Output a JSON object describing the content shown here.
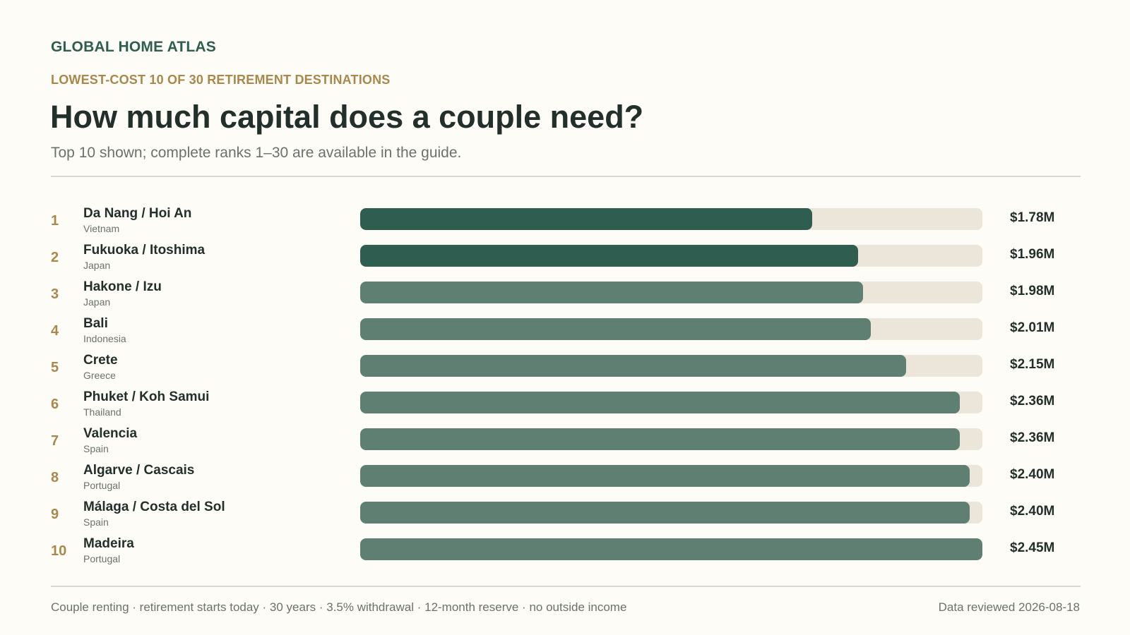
{
  "header": {
    "brand": "GLOBAL HOME ATLAS",
    "kicker": "LOWEST-COST 10 OF 30 RETIREMENT DESTINATIONS",
    "title": "How much capital does a couple need?",
    "subtitle": "Top 10 shown; complete ranks 1–30 are available in the guide."
  },
  "footer": {
    "assumptions": "Couple renting · retirement starts today · 30 years · 3.5% withdrawal · 12-month reserve · no outside income",
    "reviewed": "Data reviewed 2026-08-18"
  },
  "colors": {
    "highlight_bar": "#2f5e50",
    "standard_bar": "#5f7f72",
    "track": "#ebe5da",
    "accent": "#a8884c"
  },
  "chart_data": {
    "type": "bar",
    "orientation": "horizontal",
    "unit": "USD millions",
    "xlim": [
      0,
      2.45
    ],
    "grid": false,
    "legend": "none",
    "rows": [
      {
        "rank": "1",
        "name": "Da Nang / Hoi An",
        "country": "Vietnam",
        "value": 1.78,
        "label": "$1.78M",
        "highlight": true
      },
      {
        "rank": "2",
        "name": "Fukuoka / Itoshima",
        "country": "Japan",
        "value": 1.96,
        "label": "$1.96M",
        "highlight": true
      },
      {
        "rank": "3",
        "name": "Hakone / Izu",
        "country": "Japan",
        "value": 1.98,
        "label": "$1.98M",
        "highlight": false
      },
      {
        "rank": "4",
        "name": "Bali",
        "country": "Indonesia",
        "value": 2.01,
        "label": "$2.01M",
        "highlight": false
      },
      {
        "rank": "5",
        "name": "Crete",
        "country": "Greece",
        "value": 2.15,
        "label": "$2.15M",
        "highlight": false
      },
      {
        "rank": "6",
        "name": "Phuket / Koh Samui",
        "country": "Thailand",
        "value": 2.36,
        "label": "$2.36M",
        "highlight": false
      },
      {
        "rank": "7",
        "name": "Valencia",
        "country": "Spain",
        "value": 2.36,
        "label": "$2.36M",
        "highlight": false
      },
      {
        "rank": "8",
        "name": "Algarve / Cascais",
        "country": "Portugal",
        "value": 2.4,
        "label": "$2.40M",
        "highlight": false
      },
      {
        "rank": "9",
        "name": "Málaga / Costa del Sol",
        "country": "Spain",
        "value": 2.4,
        "label": "$2.40M",
        "highlight": false
      },
      {
        "rank": "10",
        "name": "Madeira",
        "country": "Portugal",
        "value": 2.45,
        "label": "$2.45M",
        "highlight": false
      }
    ]
  }
}
